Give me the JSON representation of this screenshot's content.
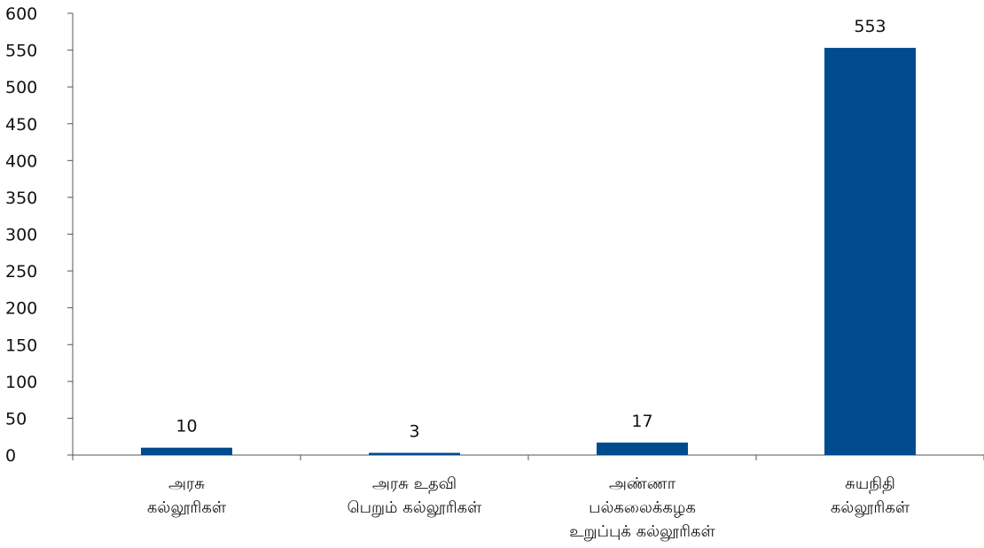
{
  "chart_data": {
    "type": "bar",
    "categories": [
      [
        "அரசு",
        "கல்லூரிகள்"
      ],
      [
        "அரசு உதவி",
        "பெறும் கல்லூரிகள்"
      ],
      [
        "அண்ணா",
        "பல்கலைக்கழக",
        "உறுப்புக் கல்லூரிகள்"
      ],
      [
        "சுயநிதி",
        "கல்லூரிகள்"
      ]
    ],
    "values": [
      10,
      3,
      17,
      553
    ],
    "data_labels": [
      "10",
      "3",
      "17",
      "553"
    ],
    "ylim": [
      0,
      600
    ],
    "yticks": [
      0,
      50,
      100,
      150,
      200,
      250,
      300,
      350,
      400,
      450,
      500,
      550,
      600
    ],
    "ytick_labels": [
      "0",
      "50",
      "100",
      "150",
      "200",
      "250",
      "300",
      "350",
      "400",
      "450",
      "500",
      "550",
      "600"
    ],
    "bar_color": "#004B8D",
    "grid": false,
    "legend": "none",
    "title": "",
    "xlabel": "",
    "ylabel": ""
  }
}
